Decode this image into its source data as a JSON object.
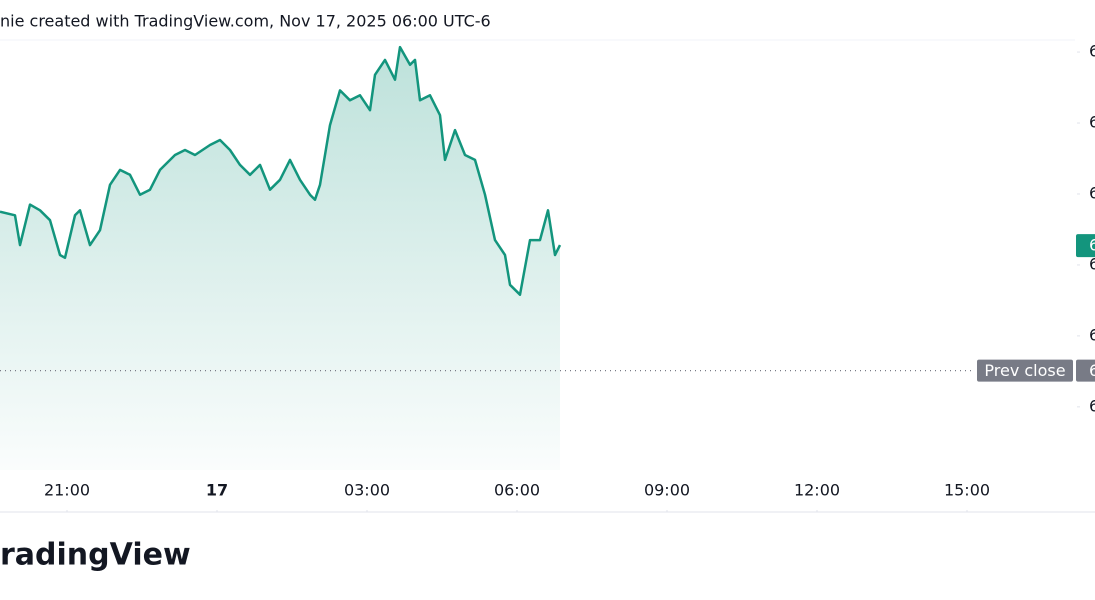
{
  "header": {
    "title": "nie created with TradingView.com, Nov 17, 2025 06:00 UTC-6"
  },
  "chart_data": {
    "type": "area",
    "color": "#13957d",
    "x": [
      19.66,
      19.96,
      20.06,
      20.26,
      20.46,
      20.66,
      20.86,
      20.96,
      21.16,
      21.26,
      21.46,
      21.66,
      21.86,
      22.06,
      22.26,
      22.46,
      22.66,
      22.86,
      23.16,
      23.36,
      23.56,
      23.86,
      24.06,
      24.26,
      24.46,
      24.66,
      24.86,
      25.06,
      25.26,
      25.46,
      25.66,
      25.86,
      25.96,
      26.06,
      26.26,
      26.46,
      26.66,
      26.86,
      27.06,
      27.16,
      27.36,
      27.56,
      27.66,
      27.86,
      27.96,
      28.06,
      28.26,
      28.46,
      28.56,
      28.76,
      28.96,
      29.16,
      29.36,
      29.56,
      29.76,
      29.86,
      30.06,
      30.26,
      30.46,
      30.62,
      30.76,
      30.86
    ],
    "values": [
      2.75,
      2.7,
      2.28,
      2.85,
      2.77,
      2.63,
      2.14,
      2.1,
      2.7,
      2.77,
      2.28,
      2.49,
      3.13,
      3.34,
      3.27,
      2.99,
      3.06,
      3.34,
      3.55,
      3.62,
      3.55,
      3.69,
      3.76,
      3.62,
      3.41,
      3.27,
      3.41,
      3.06,
      3.2,
      3.48,
      3.2,
      2.99,
      2.92,
      3.13,
      3.97,
      4.46,
      4.32,
      4.39,
      4.18,
      4.68,
      4.89,
      4.61,
      5.07,
      4.82,
      4.89,
      4.32,
      4.39,
      4.11,
      3.48,
      3.9,
      3.55,
      3.48,
      2.99,
      2.35,
      2.14,
      1.72,
      1.58,
      2.35,
      2.35,
      2.77,
      2.14,
      2.28
    ],
    "xlim": [
      19.66,
      41.16
    ],
    "xticks": [
      {
        "value": 21,
        "label": "21:00"
      },
      {
        "value": 24,
        "label": "17"
      },
      {
        "value": 27,
        "label": "03:00"
      },
      {
        "value": 30,
        "label": "06:00"
      },
      {
        "value": 33,
        "label": "09:00"
      },
      {
        "value": 36,
        "label": "12:00"
      },
      {
        "value": 39,
        "label": "15:00"
      }
    ],
    "ylim": [
      -0.89,
      5.17
    ],
    "yticks": [
      {
        "value": 5,
        "label": "6"
      },
      {
        "value": 4,
        "label": "6"
      },
      {
        "value": 3,
        "label": "6"
      },
      {
        "value": 2,
        "label": "6"
      },
      {
        "value": 1,
        "label": "6"
      },
      {
        "value": 0,
        "label": "6"
      }
    ],
    "grid": false,
    "last_price_label": "6",
    "prev_close": {
      "value": 0.51,
      "name": "Prev close",
      "label": "6"
    }
  },
  "footer": {
    "logo": "radingView"
  }
}
